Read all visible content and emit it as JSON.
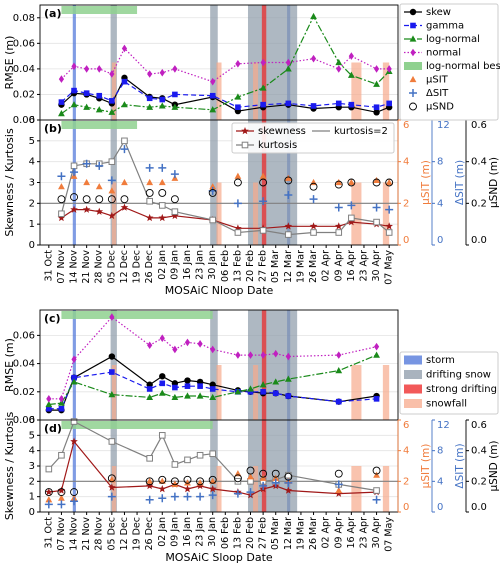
{
  "chart_data": [
    {
      "type": "line",
      "label": "(a)",
      "ylabel": "RMSE (m)",
      "xlim": [
        -0.7,
        27.7
      ],
      "xticks": [
        0,
        1,
        2,
        3,
        4,
        5,
        6,
        7,
        8,
        9,
        10,
        11,
        12,
        13,
        14,
        15,
        16,
        17,
        18,
        19,
        20,
        21,
        22,
        23,
        24,
        25,
        26,
        27
      ],
      "ylim": [
        0,
        0.09
      ],
      "yticks": [
        {
          "value": 0,
          "label": "0.00"
        },
        {
          "value": 0.02,
          "label": "0.02"
        },
        {
          "value": 0.04,
          "label": "0.04"
        },
        {
          "value": 0.06,
          "label": "0.06"
        },
        {
          "value": 0.08,
          "label": "0.08"
        }
      ],
      "grid": true,
      "best": {
        "name": "log-normal best",
        "color": "#8fd18f",
        "range": [
          1,
          7
        ]
      },
      "x": [
        1,
        2,
        3,
        4,
        5,
        6,
        8,
        9,
        10,
        13,
        15,
        17,
        19,
        21,
        23,
        24,
        26,
        27
      ],
      "series": [
        {
          "name": "skew",
          "color": "#000000",
          "marker": "circle",
          "dash": "none",
          "values": [
            0.012,
            0.021,
            0.02,
            0.017,
            0.013,
            0.033,
            0.018,
            0.017,
            0.012,
            0.018,
            0.007,
            0.01,
            0.012,
            0.009,
            0.01,
            0.01,
            0.006,
            0.01
          ]
        },
        {
          "name": "gamma",
          "color": "#1a1aee",
          "marker": "square",
          "dash": "5,3",
          "values": [
            0.014,
            0.023,
            0.021,
            0.019,
            0.015,
            0.03,
            0.017,
            0.016,
            0.02,
            0.019,
            0.01,
            0.012,
            0.013,
            0.011,
            0.013,
            0.012,
            0.01,
            0.013
          ]
        },
        {
          "name": "log-normal",
          "color": "#1a8a1a",
          "marker": "triangle",
          "dash": "7,2,2,2",
          "values": [
            0.005,
            0.012,
            0.01,
            0.008,
            0.006,
            0.012,
            0.01,
            0.011,
            0.01,
            0.008,
            0.018,
            0.025,
            0.04,
            0.081,
            0.045,
            0.035,
            0.028,
            0.038
          ]
        },
        {
          "name": "normal",
          "color": "#c020c0",
          "marker": "diamond",
          "dash": "1.5,2",
          "values": [
            0.032,
            0.042,
            0.04,
            0.04,
            0.036,
            0.056,
            0.036,
            0.037,
            0.04,
            0.03,
            0.044,
            0.045,
            0.045,
            0.048,
            0.04,
            0.05,
            0.04,
            0.04
          ]
        }
      ]
    },
    {
      "type": "line",
      "label": "(b)",
      "ylabel": "Skewness / Kurtosis",
      "xlabel": "MOSAiC Nloop Date",
      "xlim": [
        -0.7,
        27.7
      ],
      "xticks": [
        {
          "value": 0,
          "label": "31 Oct"
        },
        {
          "value": 1,
          "label": "07 Nov"
        },
        {
          "value": 2,
          "label": "14 Nov"
        },
        {
          "value": 3,
          "label": "21 Nov"
        },
        {
          "value": 4,
          "label": "28 Nov"
        },
        {
          "value": 5,
          "label": "05 Dec"
        },
        {
          "value": 6,
          "label": "12 Dec"
        },
        {
          "value": 7,
          "label": "19 Dec"
        },
        {
          "value": 8,
          "label": "26 Dec"
        },
        {
          "value": 9,
          "label": "02 Jan"
        },
        {
          "value": 10,
          "label": "09 Jan"
        },
        {
          "value": 11,
          "label": "16 Jan"
        },
        {
          "value": 12,
          "label": "23 Jan"
        },
        {
          "value": 13,
          "label": "30 Jan"
        },
        {
          "value": 14,
          "label": "06 Feb"
        },
        {
          "value": 15,
          "label": "13 Feb"
        },
        {
          "value": 16,
          "label": "20 Feb"
        },
        {
          "value": 17,
          "label": "27 Feb"
        },
        {
          "value": 18,
          "label": "05 Mar"
        },
        {
          "value": 19,
          "label": "12 Mar"
        },
        {
          "value": 20,
          "label": "19 Mar"
        },
        {
          "value": 21,
          "label": "26 Mar"
        },
        {
          "value": 22,
          "label": "02 Apr"
        },
        {
          "value": 23,
          "label": "09 Apr"
        },
        {
          "value": 24,
          "label": "16 Apr"
        },
        {
          "value": 25,
          "label": "23 Apr"
        },
        {
          "value": 26,
          "label": "30 Apr"
        },
        {
          "value": 27,
          "label": "07 May"
        }
      ],
      "ylim": [
        0,
        6
      ],
      "yticks": [
        0,
        1,
        2,
        3,
        4,
        5,
        6
      ],
      "grid": true,
      "ref_line": {
        "value": 2,
        "label": "kurtosis=2",
        "color": "#808080"
      },
      "axes": [
        {
          "id": "y2",
          "label": "μSIT (m)",
          "color": "#f07c3c",
          "lim": [
            0,
            6
          ],
          "ticks": [
            0,
            2,
            4,
            6
          ]
        },
        {
          "id": "y3",
          "label": "ΔSIT (m)",
          "color": "#4472c4",
          "lim": [
            0,
            12
          ],
          "ticks": [
            0,
            4,
            8,
            12
          ]
        },
        {
          "id": "y4",
          "label": "μSND (m)",
          "color": "#000000",
          "lim": [
            0,
            0.6
          ],
          "ticks": [
            {
              "value": 0,
              "label": "0.0"
            },
            {
              "value": 0.2,
              "label": "0.2"
            },
            {
              "value": 0.4,
              "label": "0.4"
            },
            {
              "value": 0.6,
              "label": "0.6"
            }
          ]
        }
      ],
      "x": [
        1,
        2,
        3,
        4,
        5,
        6,
        8,
        9,
        10,
        13,
        15,
        17,
        19,
        21,
        23,
        24,
        26,
        27
      ],
      "series": [
        {
          "name": "skewness",
          "color": "#a01818",
          "marker": "star",
          "dash": "none",
          "values": [
            1.3,
            1.7,
            1.7,
            1.6,
            1.4,
            1.8,
            1.3,
            1.3,
            1.4,
            1.2,
            0.8,
            0.8,
            0.9,
            0.9,
            0.9,
            1.1,
            1.0,
            0.9
          ]
        },
        {
          "name": "kurtosis",
          "color": "#808080",
          "marker": "open-square",
          "dash": "none",
          "values": [
            1.5,
            3.8,
            3.9,
            3.9,
            4.0,
            5.0,
            2.1,
            1.9,
            1.6,
            1.2,
            0.6,
            0.7,
            0.5,
            0.6,
            0.6,
            1.3,
            1.1,
            0.6
          ]
        },
        {
          "name": "μSIT",
          "color": "#f07c3c",
          "marker": "triangle",
          "axis": "y2",
          "linestyle": "none",
          "values": [
            2.8,
            3.3,
            3.0,
            2.8,
            2.6,
            3.0,
            3.0,
            3.0,
            3.2,
            2.8,
            3.3,
            3.3,
            3.2,
            3.0,
            3.0,
            3.0,
            3.1,
            3.0
          ]
        },
        {
          "name": "ΔSIT",
          "color": "#4472c4",
          "marker": "plus",
          "axis": "y3",
          "linestyle": "none",
          "values": [
            6.6,
            7.0,
            7.8,
            7.6,
            6.2,
            9.2,
            7.4,
            7.4,
            6.8,
            5.2,
            4.0,
            4.2,
            4.8,
            4.4,
            3.6,
            3.8,
            3.6,
            3.4
          ]
        },
        {
          "name": "μSND",
          "color": "#000000",
          "marker": "open-circle",
          "axis": "y4",
          "linestyle": "none",
          "values": [
            0.22,
            0.23,
            0.22,
            0.22,
            0.22,
            0.22,
            0.25,
            0.25,
            0.22,
            0.25,
            0.3,
            0.3,
            0.31,
            0.28,
            0.29,
            0.3,
            0.3,
            0.3
          ]
        }
      ]
    },
    {
      "type": "line",
      "label": "(c)",
      "ylabel": "RMSE (m)",
      "xlim": [
        -0.7,
        27.7
      ],
      "xticks": [
        0,
        1,
        2,
        3,
        4,
        5,
        6,
        7,
        8,
        9,
        10,
        11,
        12,
        13,
        14,
        15,
        16,
        17,
        18,
        19,
        20,
        21,
        22,
        23,
        24,
        25,
        26,
        27
      ],
      "ylim": [
        0,
        0.078
      ],
      "yticks": [
        {
          "value": 0,
          "label": "0.00"
        },
        {
          "value": 0.02,
          "label": "0.02"
        },
        {
          "value": 0.04,
          "label": "0.04"
        },
        {
          "value": 0.06,
          "label": "0.06"
        }
      ],
      "grid": true,
      "best_range": [
        1,
        13
      ],
      "spans": [
        {
          "name": "storm",
          "color": "#4a72d8",
          "ranges": [
            [
              1.9,
              2.15
            ],
            [
              18.9,
              19.15
            ]
          ]
        },
        {
          "name": "drifting snow",
          "color": "#8c9aa8",
          "ranges": [
            [
              4.9,
              5.4
            ],
            [
              12.8,
              13.4
            ],
            [
              15.8,
              19.7
            ]
          ]
        },
        {
          "name": "strong drifting",
          "color": "#ee2222",
          "ranges": [
            [
              16.9,
              17.25
            ]
          ]
        },
        {
          "name": "snowfall",
          "color": "#f7a98c",
          "ranges": [
            [
              5.0,
              5.35
            ],
            [
              13.3,
              13.7
            ],
            [
              16.2,
              16.6
            ],
            [
              24.0,
              24.8
            ],
            [
              26.5,
              27.0
            ]
          ]
        }
      ],
      "x": [
        0,
        1,
        2,
        5,
        8,
        9,
        10,
        11,
        12,
        13,
        15,
        16,
        17,
        18,
        19,
        23,
        26
      ],
      "series": [
        {
          "color": "#000000",
          "marker": "circle",
          "dash": "none",
          "values": [
            0.007,
            0.007,
            0.03,
            0.045,
            0.025,
            0.031,
            0.026,
            0.028,
            0.027,
            0.025,
            0.021,
            0.02,
            0.019,
            0.019,
            0.017,
            0.013,
            0.017
          ]
        },
        {
          "color": "#1a1aee",
          "marker": "square",
          "dash": "5,3",
          "values": [
            0.008,
            0.008,
            0.03,
            0.034,
            0.022,
            0.026,
            0.023,
            0.024,
            0.024,
            0.022,
            0.02,
            0.02,
            0.02,
            0.019,
            0.017,
            0.013,
            0.015
          ]
        },
        {
          "color": "#1a8a1a",
          "marker": "triangle",
          "dash": "7,2,2,2",
          "values": [
            0.011,
            0.012,
            0.027,
            0.018,
            0.016,
            0.019,
            0.016,
            0.017,
            0.017,
            0.016,
            0.02,
            0.022,
            0.025,
            0.027,
            0.029,
            0.035,
            0.046
          ]
        },
        {
          "color": "#c020c0",
          "marker": "diamond",
          "dash": "1.5,2",
          "values": [
            0.015,
            0.015,
            0.043,
            0.073,
            0.053,
            0.058,
            0.05,
            0.055,
            0.054,
            0.05,
            0.046,
            0.046,
            0.046,
            0.047,
            0.045,
            0.046,
            0.052
          ]
        }
      ]
    },
    {
      "type": "line",
      "label": "(d)",
      "ylabel": "Skewness / Kurtosis",
      "xlabel": "MOSAiC Sloop Date",
      "xlim": [
        -0.7,
        27.7
      ],
      "xticks": [
        {
          "value": 0,
          "label": "31 Oct"
        },
        {
          "value": 1,
          "label": "07 Nov"
        },
        {
          "value": 2,
          "label": "14 Nov"
        },
        {
          "value": 3,
          "label": "21 Nov"
        },
        {
          "value": 4,
          "label": "28 Nov"
        },
        {
          "value": 5,
          "label": "05 Dec"
        },
        {
          "value": 6,
          "label": "12 Dec"
        },
        {
          "value": 7,
          "label": "19 Dec"
        },
        {
          "value": 8,
          "label": "26 Dec"
        },
        {
          "value": 9,
          "label": "02 Jan"
        },
        {
          "value": 10,
          "label": "09 Jan"
        },
        {
          "value": 11,
          "label": "16 Jan"
        },
        {
          "value": 12,
          "label": "23 Jan"
        },
        {
          "value": 13,
          "label": "30 Jan"
        },
        {
          "value": 14,
          "label": "06 Feb"
        },
        {
          "value": 15,
          "label": "13 Feb"
        },
        {
          "value": 16,
          "label": "20 Feb"
        },
        {
          "value": 17,
          "label": "27 Feb"
        },
        {
          "value": 18,
          "label": "05 Mar"
        },
        {
          "value": 19,
          "label": "12 Mar"
        },
        {
          "value": 20,
          "label": "19 Mar"
        },
        {
          "value": 21,
          "label": "26 Mar"
        },
        {
          "value": 22,
          "label": "02 Apr"
        },
        {
          "value": 23,
          "label": "09 Apr"
        },
        {
          "value": 24,
          "label": "16 Apr"
        },
        {
          "value": 25,
          "label": "23 Apr"
        },
        {
          "value": 26,
          "label": "30 Apr"
        },
        {
          "value": 27,
          "label": "07 May"
        }
      ],
      "ylim": [
        0,
        6
      ],
      "yticks": [
        0,
        1,
        2,
        3,
        4,
        5,
        6
      ],
      "grid": true,
      "ref_line": {
        "value": 2,
        "color": "#808080"
      },
      "axes": [
        {
          "id": "y2",
          "label": "μSIT (m)",
          "color": "#f07c3c",
          "lim": [
            0,
            6
          ],
          "ticks": [
            0,
            2,
            4,
            6
          ]
        },
        {
          "id": "y3",
          "label": "ΔSIT (m)",
          "color": "#4472c4",
          "lim": [
            0,
            12
          ],
          "ticks": [
            0,
            4,
            8,
            12
          ]
        },
        {
          "id": "y4",
          "label": "μSND (m)",
          "color": "#000000",
          "lim": [
            0,
            0.6
          ],
          "ticks": [
            {
              "value": 0,
              "label": "0.0"
            },
            {
              "value": 0.2,
              "label": "0.2"
            },
            {
              "value": 0.4,
              "label": "0.4"
            },
            {
              "value": 0.6,
              "label": "0.6"
            }
          ]
        }
      ],
      "x": [
        0,
        1,
        2,
        5,
        8,
        9,
        10,
        11,
        12,
        13,
        15,
        16,
        17,
        18,
        19,
        23,
        26
      ],
      "series": [
        {
          "color": "#a01818",
          "marker": "star",
          "dash": "none",
          "values": [
            1.3,
            1.4,
            4.6,
            1.6,
            1.7,
            1.5,
            1.8,
            1.5,
            1.7,
            1.5,
            1.3,
            1.1,
            1.5,
            1.7,
            1.4,
            1.2,
            1.3
          ]
        },
        {
          "color": "#808080",
          "marker": "open-square",
          "dash": "none",
          "values": [
            2.8,
            3.7,
            5.9,
            4.6,
            3.5,
            5.0,
            3.1,
            3.4,
            3.7,
            3.8,
            2.0,
            2.0,
            2.0,
            2.1,
            2.4,
            1.8,
            1.4
          ]
        },
        {
          "color": "#f07c3c",
          "marker": "triangle",
          "axis": "y2",
          "linestyle": "none",
          "values": [
            0.8,
            0.9,
            0.9,
            2.1,
            2.0,
            2.0,
            1.8,
            1.9,
            1.9,
            2.0,
            2.5,
            2.3,
            2.2,
            2.2,
            2.0,
            1.4,
            2.4
          ]
        },
        {
          "color": "#4472c4",
          "marker": "plus",
          "axis": "y3",
          "linestyle": "none",
          "values": [
            1.0,
            1.0,
            1.4,
            2.0,
            1.6,
            1.8,
            2.0,
            2.0,
            2.0,
            2.2,
            2.4,
            2.6,
            3.4,
            3.8,
            3.8,
            3.6,
            1.6
          ]
        },
        {
          "color": "#000000",
          "marker": "open-circle",
          "axis": "y4",
          "linestyle": "none",
          "values": [
            0.13,
            0.13,
            0.13,
            0.22,
            0.2,
            0.21,
            0.2,
            0.21,
            0.2,
            0.21,
            0.22,
            0.27,
            0.25,
            0.25,
            0.23,
            0.25,
            0.27
          ]
        }
      ]
    }
  ]
}
